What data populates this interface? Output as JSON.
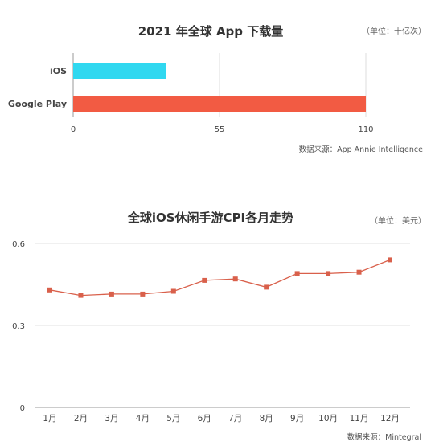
{
  "chart_data": [
    {
      "type": "bar",
      "orientation": "horizontal",
      "title": "2021 年全球 App 下载量",
      "unit_note": "（单位：十亿次）",
      "categories": [
        "iOS",
        "Google Play"
      ],
      "values": [
        35,
        110
      ],
      "colors": [
        "#30d8f0",
        "#f25b43"
      ],
      "xticks": [
        "0",
        "55",
        "110"
      ],
      "xlim": [
        0,
        110
      ],
      "grid": true,
      "source": "数据来源：App Annie Intelligence"
    },
    {
      "type": "line",
      "title": "全球iOS休闲手游CPI各月走势",
      "unit_note": "（单位：美元）",
      "categories": [
        "1月",
        "2月",
        "3月",
        "4月",
        "5月",
        "6月",
        "7月",
        "8月",
        "9月",
        "10月",
        "11月",
        "12月"
      ],
      "series": [
        {
          "values": [
            0.43,
            0.41,
            0.415,
            0.415,
            0.425,
            0.465,
            0.47,
            0.44,
            0.49,
            0.49,
            0.495,
            0.54
          ]
        }
      ],
      "color": "#d9604b",
      "yticks": [
        "0",
        "0.3",
        "0.6"
      ],
      "ylim": [
        0,
        0.6
      ],
      "grid": true,
      "source": "数据来源：Mintegral"
    }
  ]
}
